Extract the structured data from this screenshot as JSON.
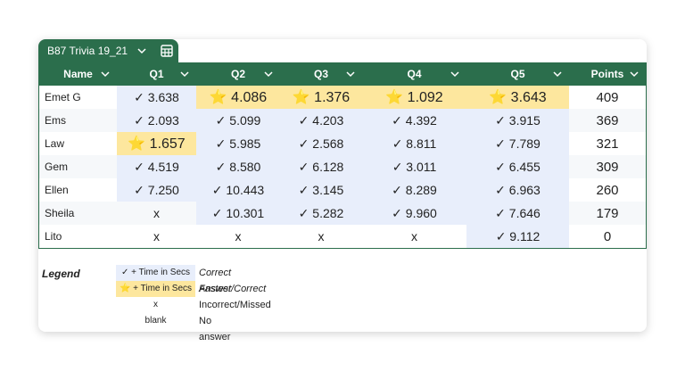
{
  "tab": {
    "title": "B87 Trivia 19_21"
  },
  "table": {
    "header": [
      "Name",
      "Q1",
      "Q2",
      "Q3",
      "Q4",
      "Q5",
      "Points"
    ],
    "rows": [
      {
        "name": "Emet G",
        "cells": [
          "✓ 3.638",
          "⭐ 4.086",
          "⭐ 1.376",
          "⭐ 1.092",
          "⭐ 3.643"
        ],
        "points": 409
      },
      {
        "name": "Ems",
        "cells": [
          "✓ 2.093",
          "✓ 5.099",
          "✓ 4.203",
          "✓ 4.392",
          "✓ 3.915"
        ],
        "points": 369
      },
      {
        "name": "Law",
        "cells": [
          "⭐ 1.657",
          "✓ 5.985",
          "✓ 2.568",
          "✓ 8.811",
          "✓ 7.789"
        ],
        "points": 321
      },
      {
        "name": "Gem",
        "cells": [
          "✓ 4.519",
          "✓ 8.580",
          "✓ 6.128",
          "✓ 3.011",
          "✓ 6.455"
        ],
        "points": 309
      },
      {
        "name": "Ellen",
        "cells": [
          "✓ 7.250",
          "✓ 10.443",
          "✓ 3.145",
          "✓ 8.289",
          "✓ 6.963"
        ],
        "points": 260
      },
      {
        "name": "Sheila",
        "cells": [
          "x",
          "✓ 10.301",
          "✓ 5.282",
          "✓ 9.960",
          "✓ 7.646"
        ],
        "points": 179
      },
      {
        "name": "Lito",
        "cells": [
          "x",
          "x",
          "x",
          "x",
          "✓ 9.112"
        ],
        "points": 0
      }
    ]
  },
  "legend": {
    "title": "Legend",
    "items": [
      [
        "✓ + Time in Secs",
        "Correct Answer"
      ],
      [
        "⭐ + Time in Secs",
        "Fastest/Correct"
      ],
      [
        "x",
        "Incorrect/Missed"
      ],
      [
        "blank",
        "No answer"
      ]
    ]
  }
}
